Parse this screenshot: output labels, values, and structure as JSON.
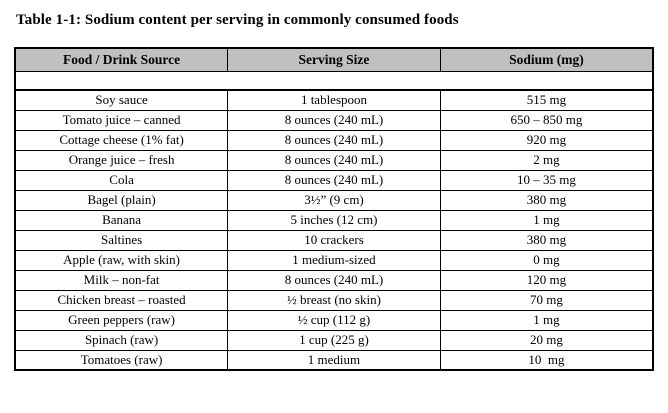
{
  "title": "Table 1-1: Sodium content per serving in commonly consumed foods",
  "table": {
    "headers": [
      "Food / Drink Source",
      "Serving Size",
      "Sodium (mg)"
    ],
    "rows": [
      [
        "Soy sauce",
        "1 tablespoon",
        "515 mg"
      ],
      [
        "Tomato juice – canned",
        "8 ounces (240 mL)",
        "650 – 850 mg"
      ],
      [
        "Cottage cheese (1% fat)",
        "8 ounces (240 mL)",
        "920 mg"
      ],
      [
        "Orange juice – fresh",
        "8 ounces (240 mL)",
        "2 mg"
      ],
      [
        "Cola",
        "8 ounces (240 mL)",
        "10 – 35 mg"
      ],
      [
        "Bagel (plain)",
        "3½” (9 cm)",
        "380 mg"
      ],
      [
        "Banana",
        "5 inches (12 cm)",
        "1 mg"
      ],
      [
        "Saltines",
        "10 crackers",
        "380 mg"
      ],
      [
        "Apple (raw, with skin)",
        "1 medium-sized",
        "0 mg"
      ],
      [
        "Milk – non-fat",
        "8 ounces (240 mL)",
        "120 mg"
      ],
      [
        "Chicken breast – roasted",
        "½ breast (no skin)",
        "70 mg"
      ],
      [
        "Green peppers (raw)",
        "½ cup (112 g)",
        "1 mg"
      ],
      [
        "Spinach (raw)",
        "1 cup (225 g)",
        "20 mg"
      ],
      [
        "Tomatoes (raw)",
        "1 medium",
        "10  mg"
      ]
    ],
    "colors": {
      "header_bg": "#c0c0c0",
      "border": "#000000",
      "text": "#000000",
      "page_bg": "#ffffff"
    }
  }
}
